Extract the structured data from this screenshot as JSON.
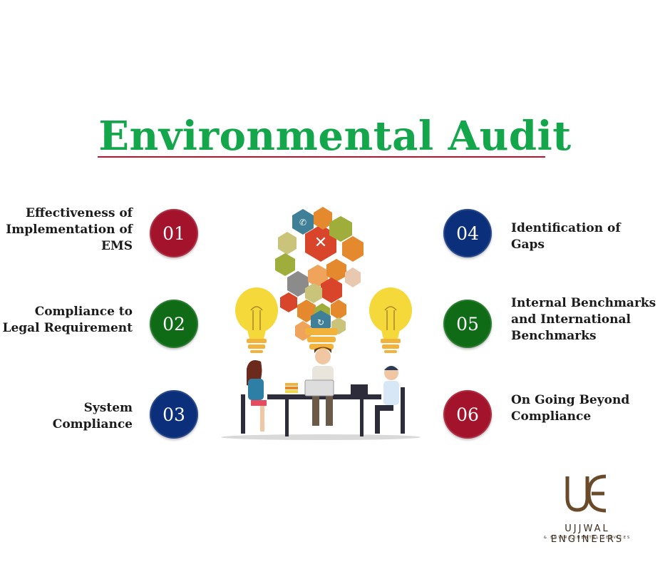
{
  "title": "Environmental Audit",
  "items": [
    {
      "number": "01",
      "label_lines": [
        "Effectiveness of",
        "Implementation of",
        "EMS"
      ],
      "color": "#a3142c"
    },
    {
      "number": "02",
      "label_lines": [
        "Compliance to",
        "Legal Requirement"
      ],
      "color": "#0f6b16"
    },
    {
      "number": "03",
      "label_lines": [
        "System",
        "Compliance"
      ],
      "color": "#0b2f7a"
    },
    {
      "number": "04",
      "label_lines": [
        "Identification of",
        "Gaps"
      ],
      "color": "#0b2f7a"
    },
    {
      "number": "05",
      "label_lines": [
        "Internal Benchmarks",
        "and International",
        "Benchmarks"
      ],
      "color": "#0f6b16"
    },
    {
      "number": "06",
      "label_lines": [
        "On Going Beyond",
        "Compliance"
      ],
      "color": "#a3142c"
    }
  ],
  "logo": {
    "monogram": "UE",
    "name": "UJJWAL ENGINEERS",
    "tagline": "& ENVIRONMENTAL SERVICES",
    "color": "#6b4a2a"
  },
  "illustration": {
    "description_icons": [
      "lightbulb-icon",
      "hexagon-cluster-icon",
      "people-at-table-icon"
    ]
  }
}
